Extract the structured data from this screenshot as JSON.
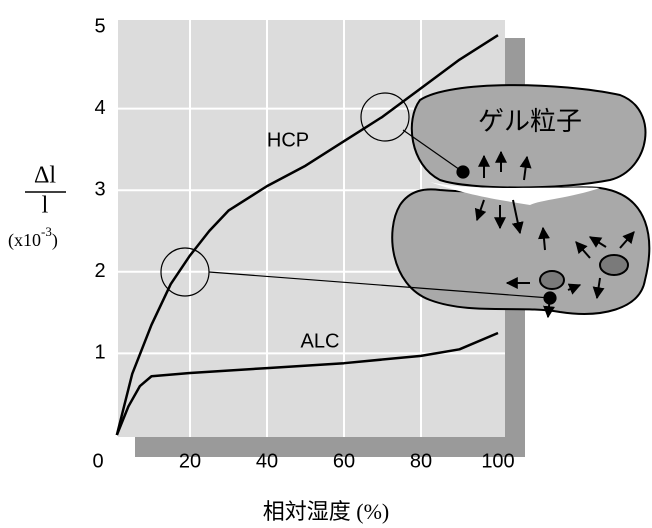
{
  "chart_data": {
    "type": "line",
    "x_label": "相対湿度 (%)",
    "y_label": {
      "numerator": "Δl",
      "denominator": "l",
      "unit_prefix": "(x10",
      "unit_exponent": "-3",
      "unit_suffix": ")"
    },
    "annotations": {
      "hcp": "HCP",
      "alc": "ALC",
      "gel": "ゲル粒子"
    },
    "series": [
      {
        "name": "HCP",
        "color": "#000000",
        "x": [
          1,
          5,
          10,
          15,
          20,
          25,
          30,
          40,
          50,
          60,
          70,
          80,
          90,
          100
        ],
        "values": [
          0,
          0.75,
          1.35,
          1.85,
          2.2,
          2.5,
          2.75,
          3.05,
          3.3,
          3.6,
          3.9,
          4.25,
          4.6,
          4.9
        ]
      },
      {
        "name": "ALC",
        "color": "#000000",
        "x": [
          1,
          4,
          7,
          10,
          15,
          20,
          40,
          60,
          80,
          90,
          100
        ],
        "values": [
          0,
          0.35,
          0.6,
          0.72,
          0.74,
          0.76,
          0.82,
          0.88,
          0.97,
          1.05,
          1.25
        ]
      }
    ],
    "xlim": [
      0,
      100
    ],
    "ylim": [
      0,
      5
    ],
    "xticks": [
      20,
      40,
      60,
      80,
      100
    ],
    "yticks": [
      0,
      1,
      2,
      3,
      4,
      5
    ],
    "grid": true
  }
}
